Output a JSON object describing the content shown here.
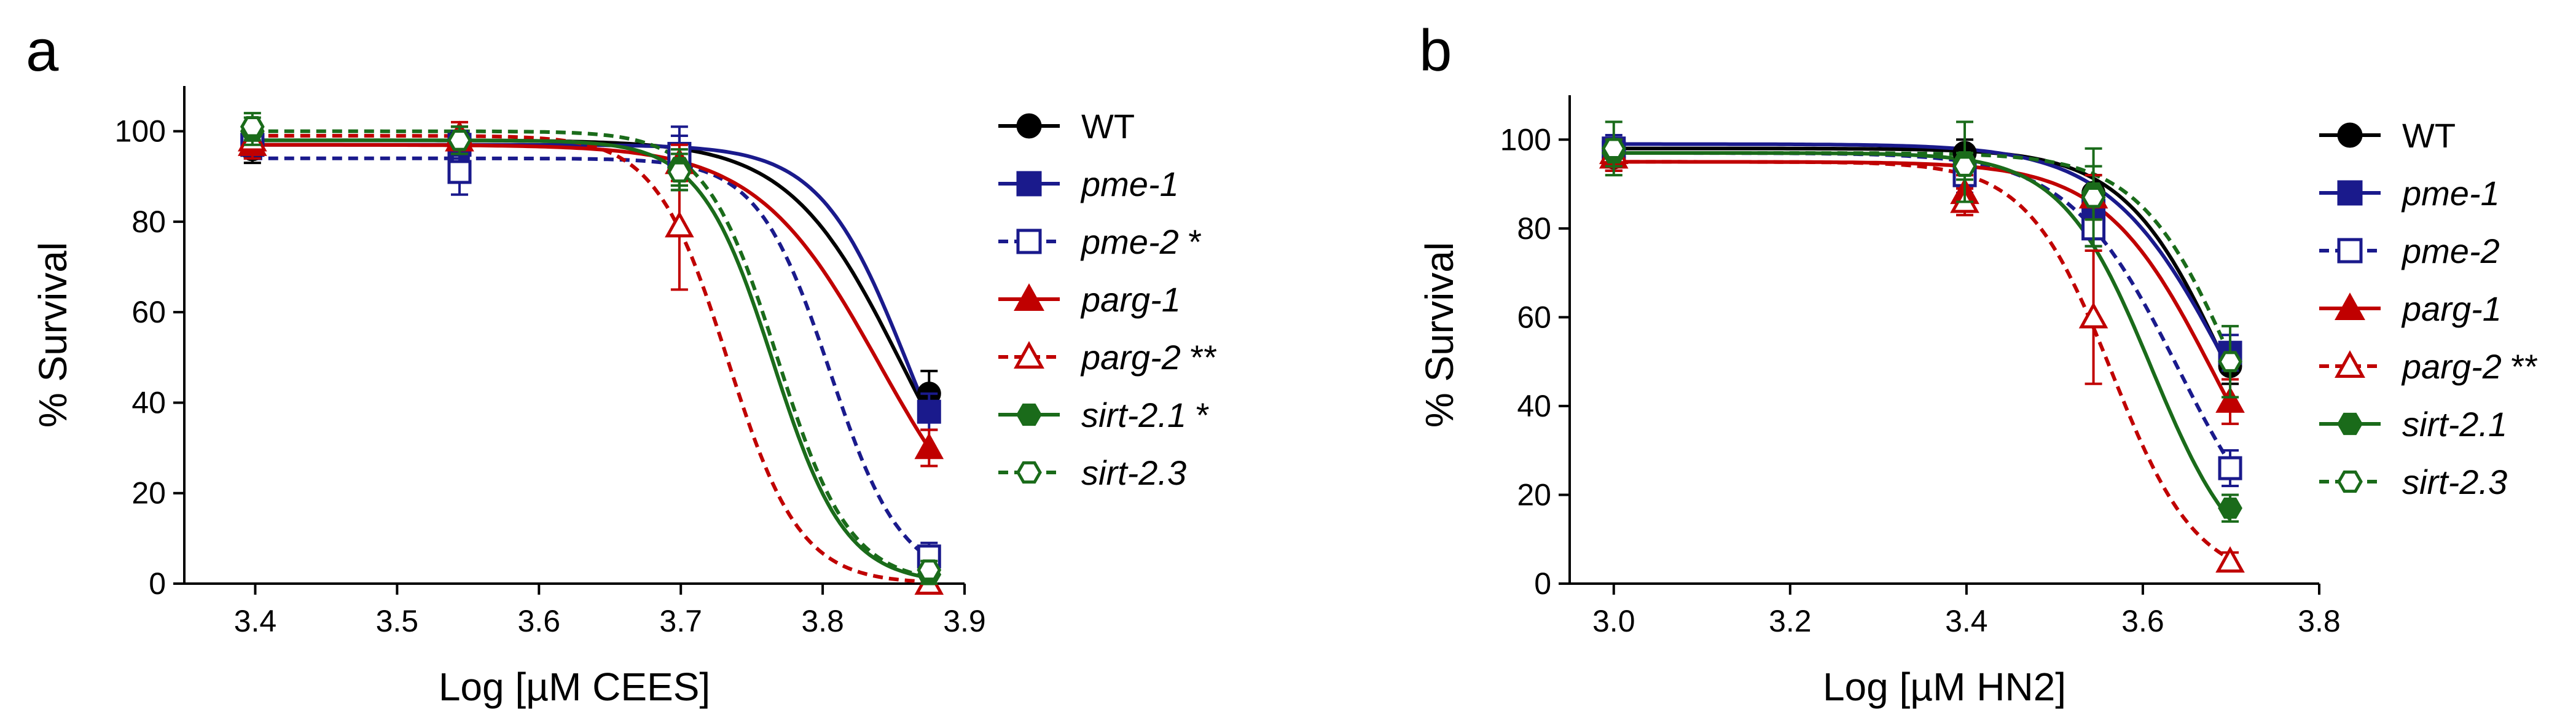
{
  "chart_data": [
    {
      "type": "line",
      "panel_label": "a",
      "xlabel": "Log [µM CEES]",
      "ylabel": "% Survival",
      "xlim": [
        3.35,
        3.9
      ],
      "ylim": [
        0,
        110
      ],
      "xticks": [
        3.4,
        3.5,
        3.6,
        3.7,
        3.8,
        3.9
      ],
      "xtick_labels": [
        "3.4",
        "3.5",
        "3.6",
        "3.7",
        "3.8",
        "3.9"
      ],
      "yticks": [
        0,
        20,
        40,
        60,
        80,
        100
      ],
      "ytick_labels": [
        "0",
        "20",
        "40",
        "60",
        "80",
        "100"
      ],
      "x": [
        3.398,
        3.544,
        3.699,
        3.875
      ],
      "series": [
        {
          "name": "WT",
          "label": "WT",
          "italic": false,
          "sig": "",
          "color": "#000000",
          "marker": "circle",
          "filled": true,
          "dashed": false,
          "values": [
            96,
            98,
            92,
            42
          ],
          "errors": [
            3,
            3,
            4,
            5
          ],
          "fit": {
            "top": 98,
            "bottom": 0,
            "logEC50": 3.855,
            "hill": 11
          }
        },
        {
          "name": "pme-1",
          "label": "pme-1",
          "italic": true,
          "sig": "",
          "color": "#1a1a8c",
          "marker": "square",
          "filled": true,
          "dashed": false,
          "values": [
            97,
            97,
            94,
            38
          ],
          "errors": [
            3,
            3,
            7,
            4
          ],
          "fit": {
            "top": 97,
            "bottom": 0,
            "logEC50": 3.86,
            "hill": 14
          }
        },
        {
          "name": "pme-2",
          "label": "pme-2",
          "italic": true,
          "sig": " *",
          "color": "#1a1a8c",
          "marker": "square",
          "filled": false,
          "dashed": true,
          "values": [
            97,
            91,
            95,
            6
          ],
          "errors": [
            3,
            5,
            4,
            3
          ],
          "fit": {
            "top": 94,
            "bottom": 0,
            "logEC50": 3.805,
            "hill": 17
          }
        },
        {
          "name": "parg-1",
          "label": "parg-1",
          "italic": true,
          "sig": "",
          "color": "#c00000",
          "marker": "triangle",
          "filled": true,
          "dashed": false,
          "values": [
            97,
            98,
            93,
            30
          ],
          "errors": [
            3,
            3,
            4,
            4
          ],
          "fit": {
            "top": 97,
            "bottom": 0,
            "logEC50": 3.84,
            "hill": 10
          }
        },
        {
          "name": "parg-2",
          "label": "parg-2",
          "italic": true,
          "sig": " **",
          "color": "#c00000",
          "marker": "triangle",
          "filled": false,
          "dashed": true,
          "values": [
            98,
            99,
            79,
            0
          ],
          "errors": [
            3,
            3,
            14,
            2
          ],
          "fit": {
            "top": 99,
            "bottom": 0,
            "logEC50": 3.733,
            "hill": 17
          }
        },
        {
          "name": "sirt-2.1",
          "label": "sirt-2.1",
          "italic": true,
          "sig": " *",
          "color": "#1a6b1a",
          "marker": "hexagon",
          "filled": true,
          "dashed": false,
          "values": [
            100,
            98,
            92,
            2
          ],
          "errors": [
            3,
            3,
            4,
            2
          ],
          "fit": {
            "top": 98,
            "bottom": 0,
            "logEC50": 3.765,
            "hill": 17
          }
        },
        {
          "name": "sirt-2.3",
          "label": "sirt-2.3",
          "italic": true,
          "sig": "",
          "color": "#1a6b1a",
          "marker": "hexagon",
          "filled": false,
          "dashed": true,
          "values": [
            101,
            98,
            91,
            3
          ],
          "errors": [
            3,
            3,
            4,
            2
          ],
          "fit": {
            "top": 100,
            "bottom": 0,
            "logEC50": 3.768,
            "hill": 17
          }
        }
      ]
    },
    {
      "type": "line",
      "panel_label": "b",
      "xlabel": "Log [µM HN2]",
      "ylabel": "% Survival",
      "xlim": [
        2.95,
        3.8
      ],
      "ylim": [
        0,
        110
      ],
      "xticks": [
        3.0,
        3.2,
        3.4,
        3.6,
        3.8
      ],
      "xtick_labels": [
        "3.0",
        "3.2",
        "3.4",
        "3.6",
        "3.8"
      ],
      "yticks": [
        0,
        20,
        40,
        60,
        80,
        100
      ],
      "ytick_labels": [
        "0",
        "20",
        "40",
        "60",
        "80",
        "100"
      ],
      "x": [
        3.0,
        3.398,
        3.544,
        3.699
      ],
      "series": [
        {
          "name": "WT",
          "label": "WT",
          "italic": false,
          "sig": "",
          "color": "#000000",
          "marker": "circle",
          "filled": true,
          "dashed": false,
          "values": [
            96,
            97,
            88,
            49
          ],
          "errors": [
            3,
            3,
            4,
            4
          ],
          "fit": {
            "top": 98,
            "bottom": 0,
            "logEC50": 3.695,
            "hill": 7.5
          }
        },
        {
          "name": "pme-1",
          "label": "pme-1",
          "italic": true,
          "sig": "",
          "color": "#1a1a8c",
          "marker": "square",
          "filled": true,
          "dashed": false,
          "values": [
            98,
            92,
            84,
            52
          ],
          "errors": [
            3,
            3,
            5,
            4
          ],
          "fit": {
            "top": 99,
            "bottom": 0,
            "logEC50": 3.695,
            "hill": 6.5
          }
        },
        {
          "name": "pme-2",
          "label": "pme-2",
          "italic": true,
          "sig": "",
          "color": "#1a1a8c",
          "marker": "square",
          "filled": false,
          "dashed": true,
          "values": [
            97,
            92,
            80,
            26
          ],
          "errors": [
            3,
            4,
            4,
            4
          ],
          "fit": {
            "top": 97,
            "bottom": 0,
            "logEC50": 3.64,
            "hill": 7
          }
        },
        {
          "name": "parg-1",
          "label": "parg-1",
          "italic": true,
          "sig": "",
          "color": "#c00000",
          "marker": "triangle",
          "filled": true,
          "dashed": false,
          "values": [
            96,
            88,
            87,
            41
          ],
          "errors": [
            3,
            4,
            5,
            5
          ],
          "fit": {
            "top": 95,
            "bottom": 0,
            "logEC50": 3.68,
            "hill": 7
          }
        },
        {
          "name": "parg-2",
          "label": "parg-2",
          "italic": true,
          "sig": " **",
          "color": "#c00000",
          "marker": "triangle",
          "filled": false,
          "dashed": true,
          "values": [
            97,
            86,
            60,
            5
          ],
          "errors": [
            3,
            3,
            15,
            2
          ],
          "fit": {
            "top": 95,
            "bottom": 0,
            "logEC50": 3.565,
            "hill": 9
          }
        },
        {
          "name": "sirt-2.1",
          "label": "sirt-2.1",
          "italic": true,
          "sig": "",
          "color": "#1a6b1a",
          "marker": "hexagon",
          "filled": true,
          "dashed": false,
          "values": [
            97,
            95,
            88,
            17
          ],
          "errors": [
            3,
            9,
            6,
            3
          ],
          "fit": {
            "top": 97,
            "bottom": 0,
            "logEC50": 3.61,
            "hill": 8.5
          }
        },
        {
          "name": "sirt-2.3",
          "label": "sirt-2.3",
          "italic": true,
          "sig": "",
          "color": "#1a6b1a",
          "marker": "hexagon",
          "filled": false,
          "dashed": true,
          "values": [
            98,
            94,
            87,
            50
          ],
          "errors": [
            6,
            3,
            11,
            8
          ],
          "fit": {
            "top": 97,
            "bottom": 0,
            "logEC50": 3.705,
            "hill": 8
          }
        }
      ]
    }
  ]
}
